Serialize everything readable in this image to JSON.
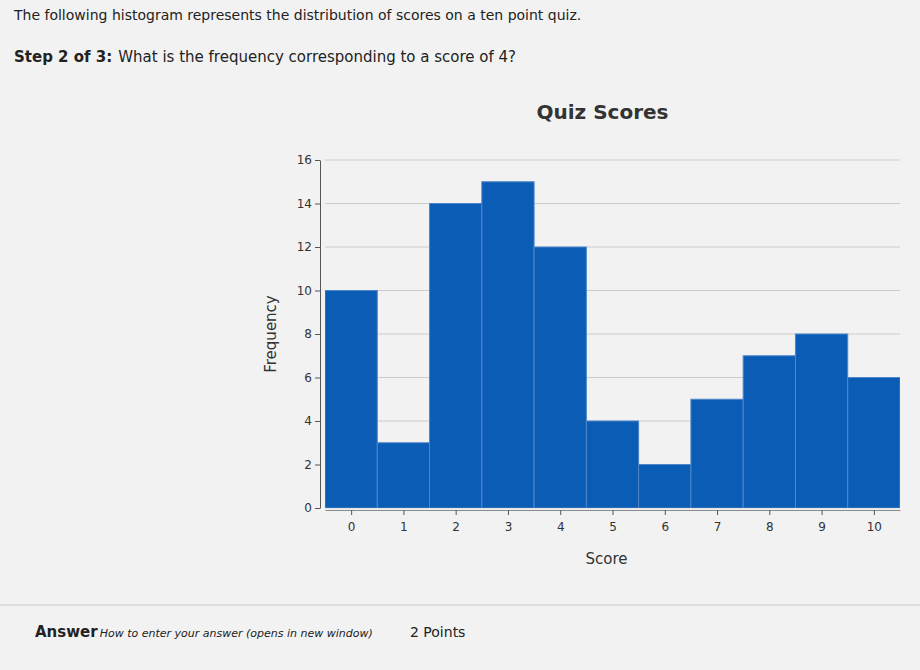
{
  "page": {
    "intro": "The following histogram represents the distribution of scores on a ten point quiz.",
    "step": "Step 2 of 3:",
    "question": "What is the frequency corresponding to a score of 4?",
    "answer_label": "Answer",
    "help_link": "How to enter your answer (opens in new window)",
    "points": "2 Points"
  },
  "chart_data": {
    "type": "histogram",
    "title": "Quiz Scores",
    "x_label": "Score",
    "y_label": "Frequency",
    "bins": [
      -0.5,
      0.5,
      1.5,
      2.5,
      3.5,
      4.5,
      5.5,
      6.5,
      7.5,
      8.5,
      9.5,
      10.5
    ],
    "counts": [
      10,
      3,
      14,
      15,
      12,
      4,
      2,
      5,
      7,
      8,
      6
    ],
    "color": "#0b5cb5",
    "xlim": [
      -0.5,
      10.5
    ],
    "xticks": [
      0,
      1,
      2,
      3,
      4,
      5,
      6,
      7,
      8,
      9,
      10
    ],
    "ylim": [
      0,
      16
    ],
    "yticks": [
      0,
      2,
      4,
      6,
      8,
      10,
      12,
      14,
      16
    ],
    "grid": true
  }
}
